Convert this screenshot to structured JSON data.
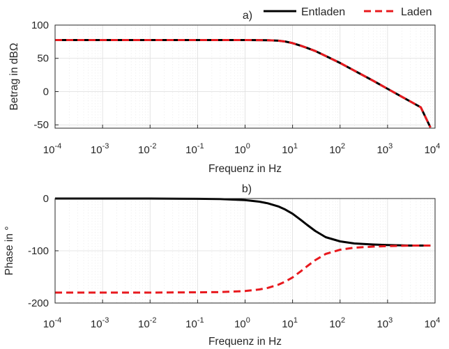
{
  "legend": {
    "location": "top-right",
    "entries": [
      {
        "label": "Entladen",
        "color": "#000000",
        "style": "solid"
      },
      {
        "label": "Laden",
        "color": "#e8191e",
        "style": "dashed"
      }
    ]
  },
  "chart_data": [
    {
      "type": "line",
      "panel": "top",
      "title": "a)",
      "xlabel": "Frequenz in Hz",
      "ylabel": "Betrag in dBΩ",
      "xscale": "log",
      "xlim": [
        0.0001,
        10000
      ],
      "ylim": [
        -55,
        100
      ],
      "xticks": [
        0.0001,
        0.001,
        0.01,
        0.1,
        1,
        10,
        100,
        1000,
        10000
      ],
      "xtick_labels": [
        {
          "base": "10",
          "exp": "-4"
        },
        {
          "base": "10",
          "exp": "-3"
        },
        {
          "base": "10",
          "exp": "-2"
        },
        {
          "base": "10",
          "exp": "-1"
        },
        {
          "base": "10",
          "exp": "0"
        },
        {
          "base": "10",
          "exp": "1"
        },
        {
          "base": "10",
          "exp": "2"
        },
        {
          "base": "10",
          "exp": "3"
        },
        {
          "base": "10",
          "exp": "4"
        }
      ],
      "yticks": [
        -50,
        0,
        50,
        100
      ],
      "ytick_labels": [
        "-50",
        "0",
        "50",
        "100"
      ],
      "grid": true,
      "series": [
        {
          "name": "Entladen",
          "x": [
            0.0001,
            0.001,
            0.01,
            0.1,
            1,
            2,
            3,
            5,
            7,
            10,
            15,
            20,
            30,
            50,
            100,
            200,
            500,
            1000,
            2000,
            5000,
            8000
          ],
          "y": [
            77.5,
            77.5,
            77.5,
            77.5,
            77.5,
            77.4,
            77.2,
            76.5,
            75.3,
            72.9,
            68.9,
            65.8,
            61.0,
            53.5,
            43.0,
            31.5,
            16.2,
            4.2,
            -7.8,
            -23.6,
            -54
          ]
        },
        {
          "name": "Laden",
          "x": [
            0.0001,
            0.001,
            0.01,
            0.1,
            1,
            2,
            3,
            5,
            7,
            10,
            15,
            20,
            30,
            50,
            100,
            200,
            500,
            1000,
            2000,
            5000,
            8000
          ],
          "y": [
            77.5,
            77.5,
            77.5,
            77.5,
            77.5,
            77.4,
            77.2,
            76.5,
            75.3,
            72.9,
            68.9,
            65.8,
            61.0,
            53.5,
            43.0,
            31.5,
            16.2,
            4.2,
            -7.8,
            -23.6,
            -54
          ]
        }
      ]
    },
    {
      "type": "line",
      "panel": "bottom",
      "title": "b)",
      "xlabel": "Frequenz in Hz",
      "ylabel": "Phase in °",
      "xscale": "log",
      "xlim": [
        0.0001,
        10000
      ],
      "ylim": [
        -200,
        0
      ],
      "xticks": [
        0.0001,
        0.001,
        0.01,
        0.1,
        1,
        10,
        100,
        1000,
        10000
      ],
      "xtick_labels": [
        {
          "base": "10",
          "exp": "-4"
        },
        {
          "base": "10",
          "exp": "-3"
        },
        {
          "base": "10",
          "exp": "-2"
        },
        {
          "base": "10",
          "exp": "-1"
        },
        {
          "base": "10",
          "exp": "0"
        },
        {
          "base": "10",
          "exp": "1"
        },
        {
          "base": "10",
          "exp": "2"
        },
        {
          "base": "10",
          "exp": "3"
        },
        {
          "base": "10",
          "exp": "4"
        }
      ],
      "yticks": [
        -200,
        -100,
        0
      ],
      "ytick_labels": [
        "-200",
        "-100",
        "0"
      ],
      "grid": true,
      "series": [
        {
          "name": "Entladen",
          "x": [
            0.0001,
            0.001,
            0.01,
            0.1,
            0.3,
            1,
            2,
            3,
            5,
            7,
            10,
            15,
            20,
            30,
            50,
            100,
            200,
            500,
            1000,
            3000,
            8000
          ],
          "y": [
            0,
            0,
            0,
            -0.5,
            -1,
            -3,
            -6,
            -9,
            -15,
            -21,
            -29,
            -41,
            -50,
            -62,
            -74,
            -82,
            -86,
            -88,
            -89,
            -90,
            -90
          ]
        },
        {
          "name": "Laden",
          "x": [
            0.0001,
            0.001,
            0.01,
            0.1,
            0.3,
            1,
            2,
            3,
            5,
            7,
            10,
            15,
            20,
            30,
            50,
            100,
            200,
            500,
            1000,
            3000,
            8000
          ],
          "y": [
            -180,
            -180,
            -180,
            -179.5,
            -179,
            -177,
            -174,
            -171,
            -165,
            -159,
            -151,
            -139,
            -130,
            -118,
            -106,
            -98,
            -94,
            -92,
            -91,
            -90,
            -90
          ]
        }
      ]
    }
  ]
}
